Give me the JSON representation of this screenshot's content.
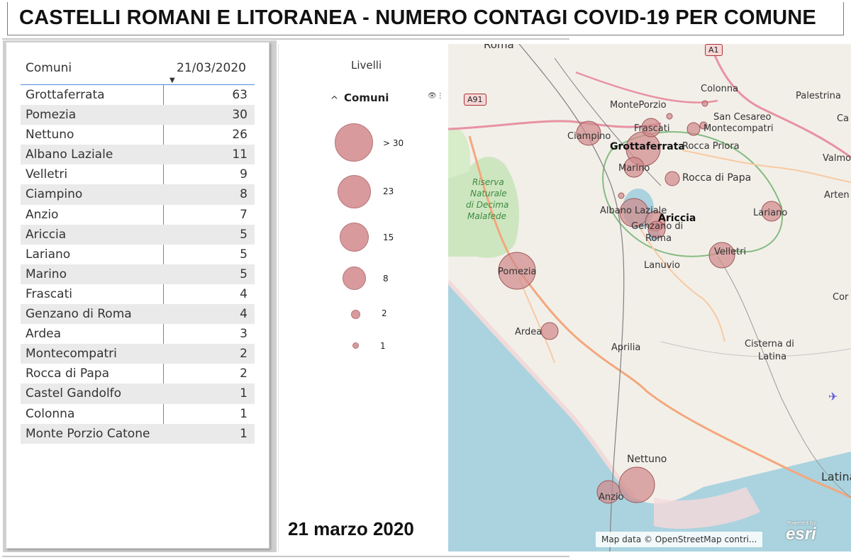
{
  "title": "CASTELLI ROMANI E LITORANEA - NUMERO CONTAGI COVID-19 PER COMUNE",
  "table": {
    "col_name": "Comuni",
    "col_date": "21/03/2020",
    "rows": [
      {
        "name": "Grottaferrata",
        "value": "63"
      },
      {
        "name": "Pomezia",
        "value": "30"
      },
      {
        "name": "Nettuno",
        "value": "26"
      },
      {
        "name": "Albano Laziale",
        "value": "11"
      },
      {
        "name": "Velletri",
        "value": "9"
      },
      {
        "name": "Ciampino",
        "value": "8"
      },
      {
        "name": "Anzio",
        "value": "7"
      },
      {
        "name": "Ariccia",
        "value": "5"
      },
      {
        "name": "Lariano",
        "value": "5"
      },
      {
        "name": "Marino",
        "value": "5"
      },
      {
        "name": "Frascati",
        "value": "4"
      },
      {
        "name": "Genzano di Roma",
        "value": "4"
      },
      {
        "name": "Ardea",
        "value": "3"
      },
      {
        "name": "Montecompatri",
        "value": "2"
      },
      {
        "name": "Rocca di Papa",
        "value": "2"
      },
      {
        "name": "Castel Gandolfo",
        "value": "1"
      },
      {
        "name": "Colonna",
        "value": "1"
      },
      {
        "name": "Monte Porzio Catone",
        "value": "1"
      }
    ]
  },
  "legend": {
    "title": "Livelli",
    "layer": "Comuni",
    "items": [
      {
        "label": "> 30"
      },
      {
        "label": "23"
      },
      {
        "label": "15"
      },
      {
        "label": "8"
      },
      {
        "label": "2"
      },
      {
        "label": "1"
      }
    ]
  },
  "date_caption": "21 marzo 2020",
  "map": {
    "bubble_color": "#d08a8c",
    "labels": {
      "roma": "Roma",
      "a1": "A1",
      "a91": "A91",
      "colonna": "Colonna",
      "palestrina": "Palestrina",
      "monteporzio": "MontePorzio",
      "san_cesareo": "San Cesareo",
      "frascati": "Frascati",
      "montecompatri": "Montecompatri",
      "ciampino": "Ciampino",
      "grottaferrata": "Grottaferrata",
      "rocca_priora": "Rocca Priora",
      "marino": "Marino",
      "rocca_di_papa": "Rocca di Papa",
      "valmont": "Valmon",
      "artena": "Arten",
      "albano": "Albano Laziale",
      "ariccia": "Ariccia",
      "lariano": "Lariano",
      "genzano_1": "Genzano di",
      "genzano_2": "Roma",
      "velletri": "Velletri",
      "lanuvio": "Lanuvio",
      "pomezia": "Pomezia",
      "riserva_1": "Riserva",
      "riserva_2": "Naturale",
      "riserva_3": "di Decima",
      "riserva_4": "Malafede",
      "ardea": "Ardea",
      "aprilia": "Aprilia",
      "cisterna_1": "Cisterna di",
      "cisterna_2": "Latina",
      "cor": "Cor",
      "ca": "Ca",
      "nettuno": "Nettuno",
      "anzio": "Anzio",
      "latina": "Latina"
    },
    "attribution": "Map data © OpenStreetMap contri...",
    "brand": "esri",
    "brand_sub": "Powered by"
  }
}
